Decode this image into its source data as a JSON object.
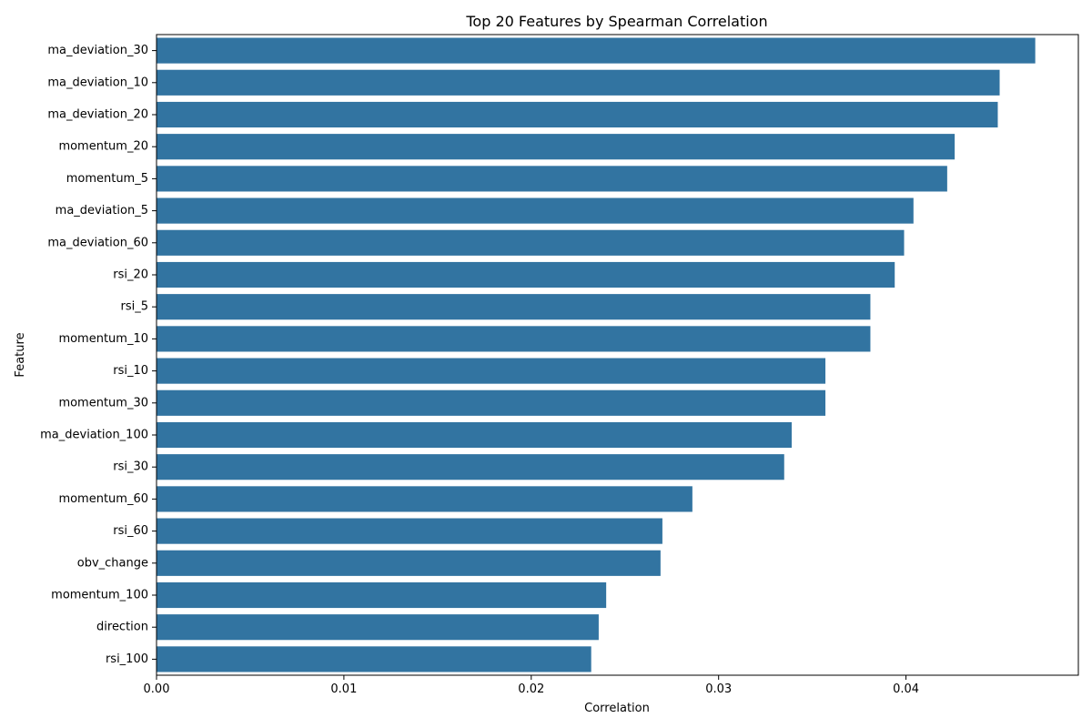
{
  "chart_data": {
    "type": "bar",
    "orientation": "horizontal",
    "title": "Top 20 Features by Spearman Correlation",
    "xlabel": "Correlation",
    "ylabel": "Feature",
    "categories": [
      "ma_deviation_30",
      "ma_deviation_10",
      "ma_deviation_20",
      "momentum_20",
      "momentum_5",
      "ma_deviation_5",
      "ma_deviation_60",
      "rsi_20",
      "rsi_5",
      "momentum_10",
      "rsi_10",
      "momentum_30",
      "ma_deviation_100",
      "rsi_30",
      "momentum_60",
      "rsi_60",
      "obv_change",
      "momentum_100",
      "direction",
      "rsi_100"
    ],
    "values": [
      0.0469,
      0.045,
      0.0449,
      0.0426,
      0.0422,
      0.0404,
      0.0399,
      0.0394,
      0.0381,
      0.0381,
      0.0357,
      0.0357,
      0.0339,
      0.0335,
      0.0286,
      0.027,
      0.0269,
      0.024,
      0.0236,
      0.0232
    ],
    "xlim": [
      0,
      0.0492
    ],
    "xticks": [
      0.0,
      0.01,
      0.02,
      0.03,
      0.04
    ],
    "xtick_labels": [
      "0.00",
      "0.01",
      "0.02",
      "0.03",
      "0.04"
    ],
    "bar_color": "#3274a1",
    "grid": false,
    "legend": "none"
  }
}
